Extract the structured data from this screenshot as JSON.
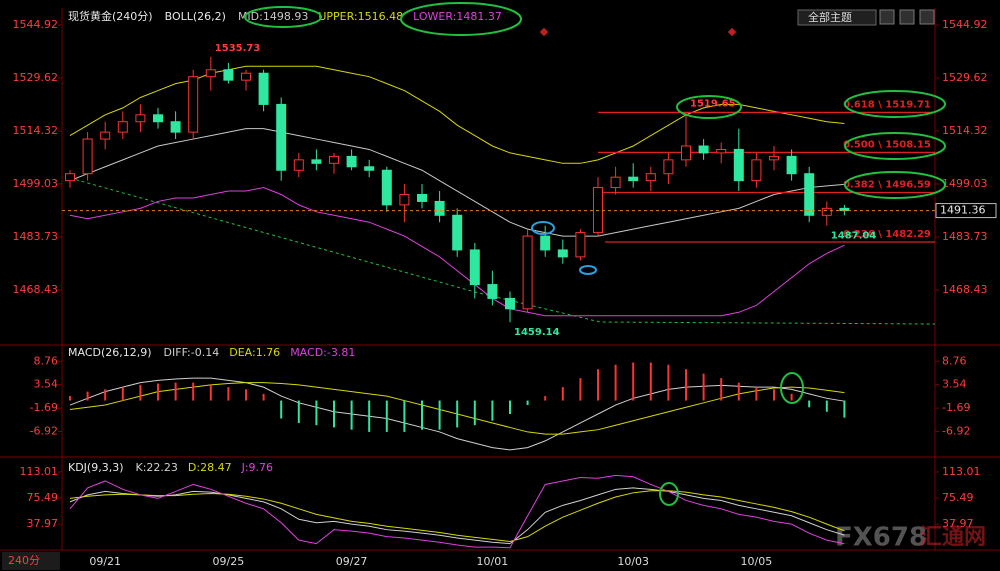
{
  "toolbar": {
    "theme": "全部主题"
  },
  "period": "240分",
  "watermark": {
    "brand": "FX678",
    "name": "汇通网"
  },
  "chart_data": [
    {
      "type": "candlestick",
      "title": "现货黄金(240分)",
      "indicator": "BOLL(26,2)",
      "categories": [
        null,
        null,
        "09/21",
        null,
        null,
        null,
        null,
        null,
        null,
        "09/25",
        null,
        null,
        null,
        null,
        null,
        null,
        "09/27",
        null,
        null,
        null,
        null,
        null,
        null,
        null,
        "10/01",
        null,
        null,
        null,
        null,
        null,
        null,
        null,
        "10/03",
        null,
        null,
        null,
        null,
        null,
        null,
        "10/05",
        null,
        null,
        null,
        null,
        null
      ],
      "open": [
        1500,
        1502,
        1512,
        1514,
        1517,
        1519,
        1517,
        1514,
        1530,
        1532,
        1529,
        1531,
        1522,
        1503,
        1506,
        1505,
        1507,
        1504,
        1503,
        1493,
        1496,
        1494,
        1490,
        1480,
        1470,
        1466,
        1463,
        1484,
        1480,
        1478,
        1485,
        1498,
        1501,
        1500,
        1502,
        1506,
        1510,
        1508,
        1509,
        1500,
        1506,
        1507,
        1502,
        1490,
        1492
      ],
      "high": [
        1503,
        1514,
        1517,
        1520,
        1522,
        1521,
        1520,
        1532,
        1535.73,
        1534,
        1532,
        1532,
        1524,
        1508,
        1509,
        1508,
        1509,
        1506,
        1504,
        1499,
        1499,
        1497,
        1492,
        1482,
        1474,
        1468,
        1486,
        1487,
        1483,
        1486,
        1501,
        1504,
        1505,
        1504,
        1508,
        1519.65,
        1512,
        1511,
        1515,
        1508,
        1510,
        1509,
        1504,
        1494,
        1493
      ],
      "low": [
        1498,
        1500,
        1509,
        1512,
        1514,
        1515,
        1512,
        1512,
        1526,
        1528,
        1526,
        1520,
        1500,
        1501,
        1503,
        1502,
        1503,
        1501,
        1491,
        1488,
        1492,
        1488,
        1478,
        1466,
        1464,
        1459.14,
        1462,
        1478,
        1476,
        1477,
        1484,
        1496,
        1498,
        1497,
        1499,
        1504,
        1506,
        1505,
        1497,
        1498,
        1503,
        1500,
        1488,
        1487.04,
        1490
      ],
      "close": [
        1502,
        1512,
        1514,
        1517,
        1519,
        1517,
        1514,
        1530,
        1532,
        1529,
        1531,
        1522,
        1503,
        1506,
        1505,
        1507,
        1504,
        1503,
        1493,
        1496,
        1494,
        1490,
        1480,
        1470,
        1466,
        1463,
        1484,
        1480,
        1478,
        1485,
        1498,
        1501,
        1500,
        1502,
        1506,
        1510,
        1508,
        1509,
        1500,
        1506,
        1507,
        1502,
        1490,
        1492,
        1491.36
      ],
      "up_color": "#ff3232",
      "down_color": "#2ee8a0",
      "series": [
        {
          "name": "MID:1498.93",
          "color": "#c8c8c8",
          "values": [
            1500,
            1502,
            1504,
            1506,
            1508,
            1510,
            1511,
            1512,
            1513,
            1514,
            1515,
            1515,
            1514,
            1513,
            1512,
            1511,
            1510,
            1509,
            1507,
            1505,
            1503,
            1500,
            1497,
            1494,
            1491,
            1488,
            1486,
            1485,
            1484,
            1484,
            1484,
            1485,
            1486,
            1487,
            1488,
            1489,
            1490,
            1491,
            1492,
            1494,
            1496,
            1497,
            1498,
            1498.5,
            1498.93
          ]
        },
        {
          "name": "UPPER:1516.48",
          "color": "#d8d800",
          "values": [
            1513,
            1516,
            1519,
            1521,
            1524,
            1526,
            1528,
            1529,
            1531,
            1532,
            1533,
            1533,
            1533,
            1533,
            1533,
            1532,
            1531,
            1530,
            1528,
            1526,
            1523,
            1520,
            1516,
            1513,
            1510,
            1508,
            1507,
            1506,
            1505,
            1505,
            1506,
            1508,
            1510,
            1513,
            1516,
            1519,
            1521,
            1522,
            1522,
            1521,
            1520,
            1519,
            1518,
            1517,
            1516.48
          ]
        },
        {
          "name": "LOWER:1481.37",
          "color": "#e040e0",
          "values": [
            1490,
            1489,
            1490,
            1491,
            1492,
            1494,
            1495,
            1495,
            1496,
            1497,
            1497,
            1498,
            1496,
            1493,
            1491,
            1490,
            1489,
            1488,
            1486,
            1484,
            1481,
            1478,
            1474,
            1470,
            1466,
            1463,
            1462,
            1461,
            1461,
            1461,
            1461,
            1461,
            1461,
            1461,
            1461,
            1461,
            1461,
            1461,
            1462,
            1464,
            1468,
            1472,
            1476,
            1479,
            1481.37
          ]
        }
      ],
      "levels": [
        {
          "value": 1519.71,
          "label": "0.618 \\ 1519.71"
        },
        {
          "value": 1508.15,
          "label": "0.500 \\ 1508.15"
        },
        {
          "value": 1496.59,
          "label": "0.382 \\ 1496.59"
        },
        {
          "value": 1482.29,
          "label": "0.236 \\ 1482.29"
        }
      ],
      "level_color": "#e02020",
      "ylim": [
        1452.56,
        1549.25
      ],
      "yticks": [
        1544.92,
        1529.62,
        1514.32,
        1499.03,
        1483.73,
        1468.43
      ]
    },
    {
      "type": "macd",
      "title": "MACD(26,12,9)",
      "series": [
        {
          "name": "DIFF:-0.14",
          "color": "#d0d0d0",
          "values": [
            -1,
            0.5,
            2,
            3,
            4,
            4.5,
            4.8,
            5,
            5,
            4.5,
            4,
            3,
            1,
            -0.5,
            -1.5,
            -2.5,
            -3,
            -3.5,
            -4,
            -5,
            -6,
            -7,
            -8.5,
            -9.5,
            -10.5,
            -11,
            -10.5,
            -9,
            -7,
            -5,
            -3,
            -1,
            0.5,
            1.5,
            2.5,
            3,
            3.2,
            3.4,
            3.2,
            3,
            3,
            2.5,
            1.5,
            0.5,
            -0.14
          ]
        },
        {
          "name": "DEA:1.76",
          "color": "#d8d800",
          "values": [
            -2,
            -1.5,
            -1,
            0,
            1,
            2,
            2.5,
            3,
            3.5,
            3.8,
            4,
            4,
            3.8,
            3.5,
            3,
            2.5,
            2,
            1.5,
            1,
            0,
            -1,
            -2,
            -3,
            -4,
            -5,
            -6,
            -7,
            -7.5,
            -7.5,
            -7,
            -6.5,
            -5.5,
            -4.5,
            -3.5,
            -2.5,
            -1.5,
            -0.5,
            0.5,
            1.5,
            2.2,
            2.8,
            3,
            2.8,
            2.3,
            1.76
          ]
        },
        {
          "name": "MACD:-3.81",
          "color": "#ff3232",
          "negative_color": "#2ee8a0",
          "name_color": "#e040e0",
          "type": "bar",
          "values": [
            1,
            2,
            2.5,
            3,
            3.5,
            3.8,
            4,
            4,
            3.5,
            3,
            2.5,
            1.5,
            -4,
            -5,
            -5.5,
            -6,
            -6.5,
            -7,
            -7,
            -7,
            -6.5,
            -6.5,
            -6,
            -5.5,
            -4.5,
            -3,
            -1,
            1,
            3,
            5,
            7,
            8,
            8.5,
            8.5,
            8,
            7,
            6,
            5,
            4,
            3,
            2.5,
            1.5,
            -1.5,
            -2.5,
            -3.81
          ]
        }
      ],
      "ylim": [
        -12.15,
        12.4
      ],
      "yticks": [
        8.76,
        3.54,
        -1.69,
        -6.92
      ]
    },
    {
      "type": "line",
      "title": "KDJ(9,3,3)",
      "series": [
        {
          "name": "K:22.23",
          "color": "#d0d0d0",
          "values": [
            70,
            80,
            85,
            82,
            80,
            78,
            80,
            85,
            84,
            80,
            75,
            70,
            60,
            45,
            40,
            42,
            38,
            35,
            30,
            28,
            25,
            22,
            18,
            15,
            12,
            10,
            30,
            55,
            65,
            72,
            80,
            88,
            90,
            88,
            85,
            80,
            75,
            72,
            65,
            60,
            55,
            50,
            40,
            30,
            22.23
          ]
        },
        {
          "name": "D:28.47",
          "color": "#d8d800",
          "values": [
            75,
            78,
            80,
            81,
            80,
            79,
            79,
            81,
            82,
            81,
            78,
            74,
            68,
            60,
            52,
            47,
            42,
            39,
            35,
            32,
            29,
            26,
            22,
            19,
            16,
            13,
            20,
            35,
            48,
            58,
            68,
            77,
            83,
            86,
            86,
            84,
            80,
            77,
            72,
            67,
            62,
            56,
            48,
            38,
            28.47
          ]
        },
        {
          "name": "J:9.76",
          "color": "#e040e0",
          "values": [
            60,
            90,
            100,
            88,
            80,
            75,
            85,
            95,
            88,
            78,
            68,
            60,
            40,
            15,
            10,
            30,
            28,
            25,
            20,
            18,
            15,
            12,
            8,
            5,
            5,
            4,
            50,
            95,
            100,
            105,
            104,
            108,
            106,
            95,
            85,
            72,
            65,
            60,
            52,
            48,
            42,
            38,
            25,
            15,
            9.76
          ]
        }
      ],
      "ylim": [
        3.68,
        130.15
      ],
      "yticks": [
        113.01,
        75.49,
        37.97
      ]
    }
  ]
}
